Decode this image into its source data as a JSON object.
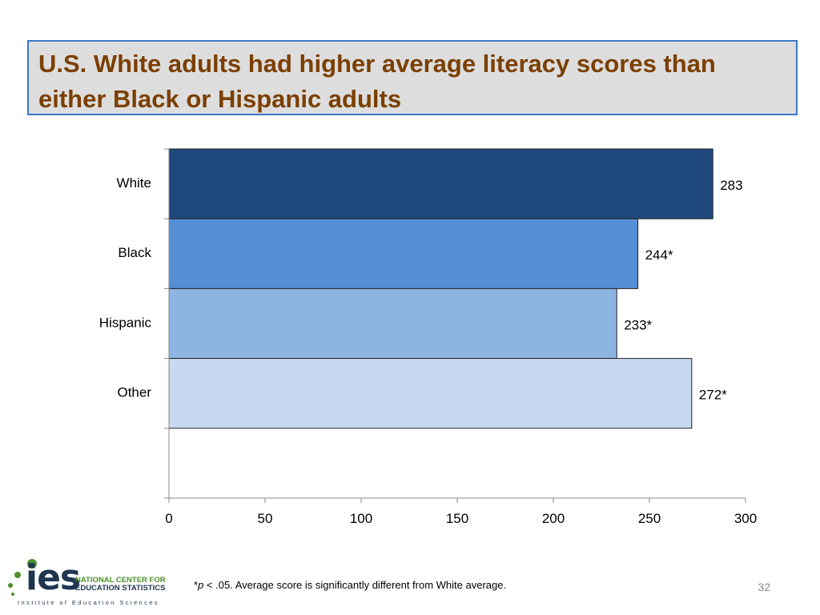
{
  "slide": {
    "title": "U.S. White adults had higher average literacy scores than either Black or Hispanic adults",
    "footnote_prefix": "*",
    "footnote_p": "p",
    "footnote_text": " < .05. Average score is significantly different from White average.",
    "page_number": "32"
  },
  "logo": {
    "wordmark": "ies",
    "line1": "NATIONAL CENTER FOR",
    "line2": "EDUCATION STATISTICS",
    "tagline": "Institute of Education Sciences",
    "colors": {
      "green": "#4b8f2a",
      "navy": "#1f3550"
    }
  },
  "chart_data": {
    "type": "bar",
    "orientation": "horizontal",
    "categories": [
      "White",
      "Black",
      "Hispanic",
      "Other"
    ],
    "values": [
      283,
      244,
      233,
      272
    ],
    "value_labels": [
      "283",
      "244*",
      "233*",
      "272*"
    ],
    "colors": [
      "#1f497d",
      "#558ed5",
      "#8eb4e3",
      "#c6d9f1"
    ],
    "xlim": [
      0,
      300
    ],
    "xticks": [
      0,
      50,
      100,
      150,
      200,
      250,
      300
    ],
    "xlabel": "",
    "ylabel": "",
    "grid": false,
    "legend": "none"
  }
}
